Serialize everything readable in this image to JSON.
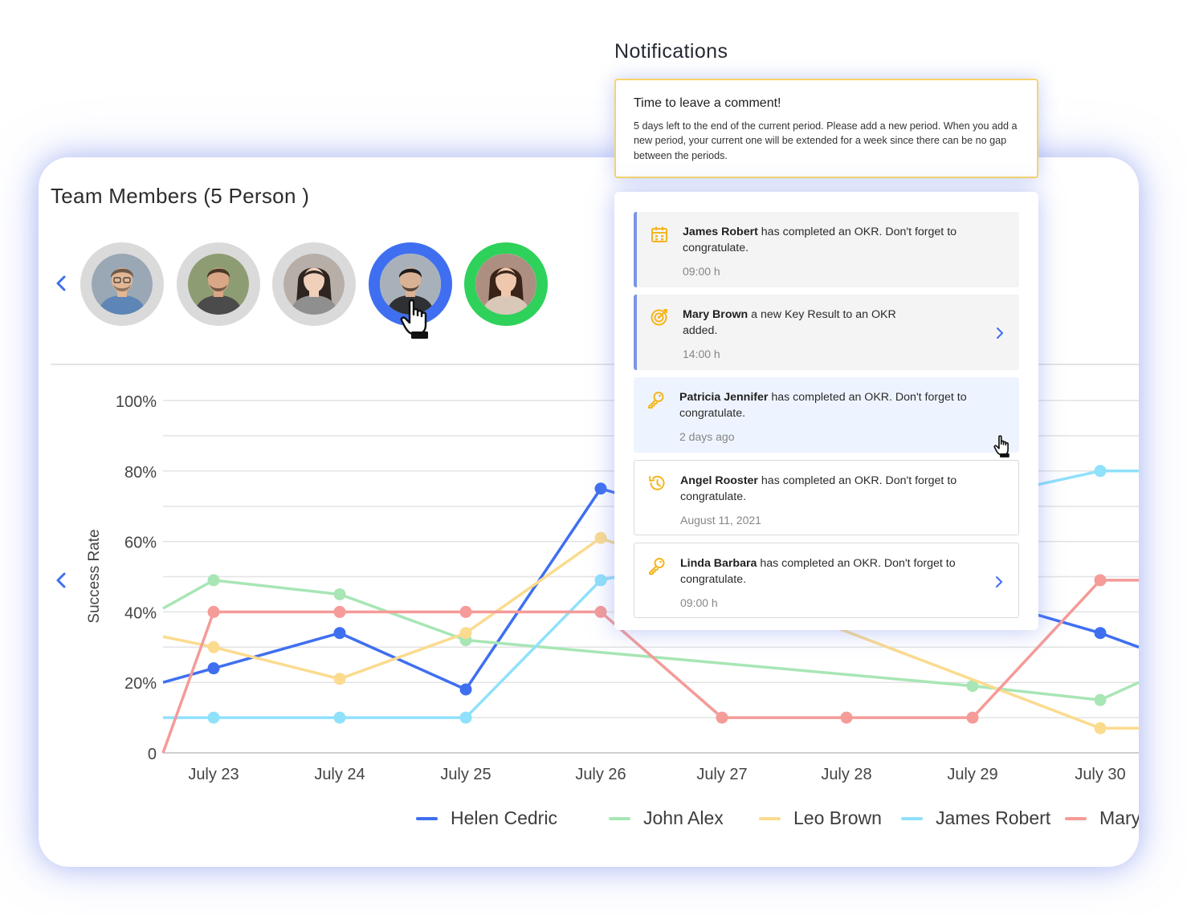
{
  "team": {
    "title": "Team Members (5 Person )",
    "avatars": [
      {
        "name": "avatar-man-glasses",
        "ring": "gray"
      },
      {
        "name": "avatar-man-beard",
        "ring": "gray"
      },
      {
        "name": "avatar-woman-scarf",
        "ring": "gray"
      },
      {
        "name": "avatar-man-dark-hair",
        "ring": "blue"
      },
      {
        "name": "avatar-woman-smiling",
        "ring": "green"
      }
    ]
  },
  "chart_data": {
    "type": "line",
    "ylabel": "Success Rate",
    "y_ticks": [
      "0",
      "20%",
      "40%",
      "60%",
      "80%",
      "100%"
    ],
    "ylim": [
      0,
      100
    ],
    "categories": [
      "July 23",
      "July 24",
      "July 25",
      "July 26",
      "July 27",
      "July 28",
      "July 29",
      "July 30"
    ],
    "grid": true,
    "legend_position": "bottom",
    "series": [
      {
        "name": "Helen Cedric",
        "color": "#3f6ff0",
        "start": 20,
        "values": [
          24,
          34,
          18,
          75,
          null,
          null,
          null,
          34
        ],
        "end": 30
      },
      {
        "name": "John Alex",
        "color": "#a8e6b5",
        "start": 41,
        "values": [
          49,
          45,
          32,
          null,
          null,
          null,
          19,
          15
        ],
        "end": 20
      },
      {
        "name": "Leo Brown",
        "color": "#fbdb8e",
        "start": 33,
        "values": [
          30,
          21,
          34,
          61,
          null,
          null,
          null,
          7
        ],
        "end": 7
      },
      {
        "name": "James Robert",
        "color": "#90e1fb",
        "start": 10,
        "values": [
          10,
          10,
          10,
          49,
          null,
          null,
          null,
          80
        ],
        "end": 80
      },
      {
        "name": "Mary",
        "color": "#f59b98",
        "start": 0,
        "values": [
          40,
          40,
          40,
          40,
          10,
          10,
          10,
          49
        ],
        "end": 49
      }
    ]
  },
  "notifications": {
    "heading": "Notifications",
    "alert": {
      "title": "Time to leave a comment!",
      "body": "5 days left to the end of the current period. Please add a new period. When you add a new period, your current one will be extended for a week since there can be no gap between the periods."
    },
    "items": [
      {
        "name": "James Robert",
        "text": "has completed an OKR. Don't forget to congratulate.",
        "time": "09:00 h",
        "icon": "calendar-icon",
        "style": "gray"
      },
      {
        "name": "Mary Brown",
        "text": "a new Key Result to an OKR added.",
        "time": "14:00 h",
        "icon": "target-icon",
        "style": "gray",
        "arrow": true
      },
      {
        "name": "Patricia Jennifer",
        "text": "has completed an OKR. Don't forget to congratulate.",
        "time": "2 days ago",
        "icon": "key-icon",
        "style": "blue"
      },
      {
        "name": "Angel Rooster",
        "text": "has completed an OKR. Don't forget to congratulate.",
        "time": "August 11, 2021",
        "icon": "history-icon",
        "style": "white"
      },
      {
        "name": "Linda Barbara",
        "text": "has completed an OKR. Don't forget to congratulate.",
        "time": "09:00 h",
        "icon": "key-icon",
        "style": "white",
        "arrow": true
      }
    ]
  },
  "colors": {
    "accent": "#3f6ff0",
    "active": "#2ed15a",
    "alert_border": "#f6d46b",
    "icon": "#f5b51f"
  }
}
